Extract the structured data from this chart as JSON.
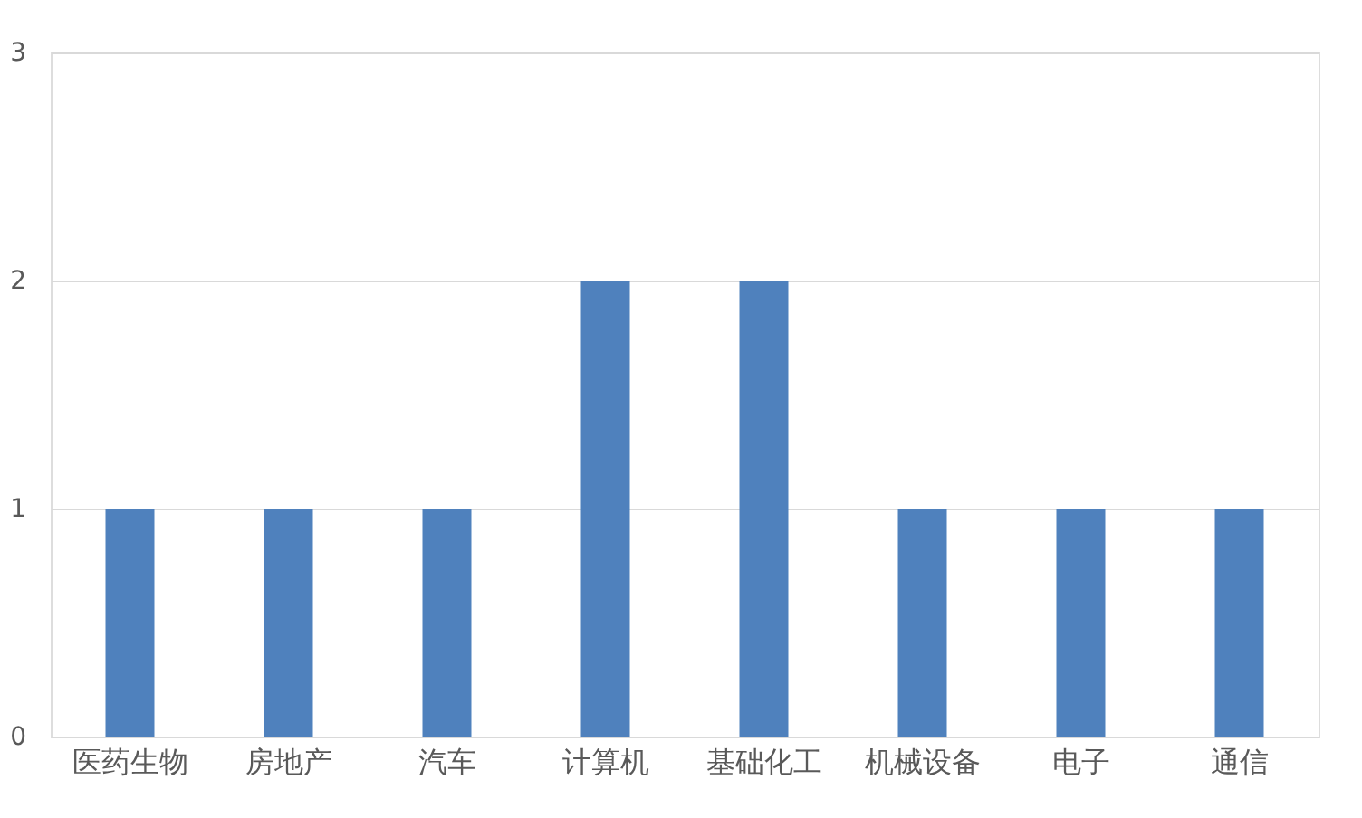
{
  "chart_data": {
    "type": "bar",
    "categories": [
      "医药生物",
      "房地产",
      "汽车",
      "计算机",
      "基础化工",
      "机械设备",
      "电子",
      "通信"
    ],
    "values": [
      1,
      1,
      1,
      2,
      2,
      1,
      1,
      1
    ],
    "color": "#4f81bd",
    "ylim": [
      0,
      3
    ],
    "yticks": [
      0,
      1,
      2,
      3
    ],
    "grid": "y"
  }
}
